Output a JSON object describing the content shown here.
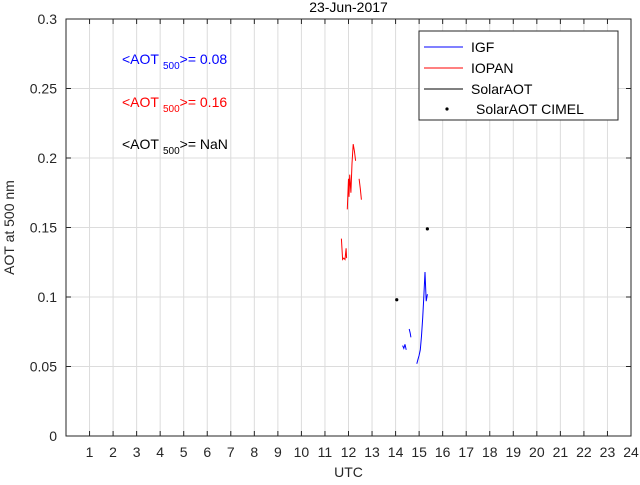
{
  "chart_data": {
    "type": "line",
    "title": "23-Jun-2017",
    "xlabel": "UTC",
    "ylabel": "AOT at 500 nm",
    "xlim": [
      0,
      24
    ],
    "ylim": [
      0,
      0.3
    ],
    "xticks": [
      1,
      2,
      3,
      4,
      5,
      6,
      7,
      8,
      9,
      10,
      11,
      12,
      13,
      14,
      15,
      16,
      17,
      18,
      19,
      20,
      21,
      22,
      23,
      24
    ],
    "yticks": [
      0,
      0.05,
      0.1,
      0.15,
      0.2,
      0.25,
      0.3
    ],
    "ytick_labels": [
      "0",
      "0.05",
      "0.1",
      "0.15",
      "0.2",
      "0.25",
      "0.3"
    ],
    "grid": true,
    "legend_position": "top-right",
    "series": [
      {
        "name": "IGF",
        "color": "#0000ff",
        "style": "line",
        "segments": [
          [
            [
              14.3,
              0.065
            ],
            [
              14.35,
              0.063
            ],
            [
              14.4,
              0.066
            ],
            [
              14.45,
              0.062
            ]
          ],
          [
            [
              14.58,
              0.077
            ],
            [
              14.62,
              0.074
            ],
            [
              14.65,
              0.071
            ]
          ],
          [
            [
              14.9,
              0.052
            ],
            [
              14.95,
              0.055
            ],
            [
              15.0,
              0.058
            ],
            [
              15.05,
              0.062
            ],
            [
              15.1,
              0.072
            ],
            [
              15.15,
              0.085
            ],
            [
              15.2,
              0.1
            ],
            [
              15.25,
              0.118
            ],
            [
              15.3,
              0.097
            ],
            [
              15.35,
              0.102
            ]
          ]
        ]
      },
      {
        "name": "IOPAN",
        "color": "#ff0000",
        "style": "line",
        "segments": [
          [
            [
              11.7,
              0.142
            ],
            [
              11.75,
              0.127
            ],
            [
              11.8,
              0.128
            ],
            [
              11.85,
              0.127
            ],
            [
              11.9,
              0.135
            ],
            [
              11.92,
              0.128
            ]
          ],
          [
            [
              11.95,
              0.163
            ],
            [
              12.0,
              0.185
            ],
            [
              12.02,
              0.172
            ],
            [
              12.05,
              0.188
            ],
            [
              12.1,
              0.175
            ],
            [
              12.15,
              0.196
            ],
            [
              12.2,
              0.21
            ],
            [
              12.25,
              0.205
            ],
            [
              12.3,
              0.198
            ]
          ],
          [
            [
              12.45,
              0.185
            ],
            [
              12.5,
              0.178
            ],
            [
              12.55,
              0.17
            ]
          ]
        ]
      },
      {
        "name": "SolarAOT",
        "color": "#000000",
        "style": "line",
        "segments": []
      },
      {
        "name": "SolarAOT CIMEL",
        "color": "#000000",
        "style": "marker",
        "points": [
          [
            14.05,
            0.098
          ],
          [
            15.35,
            0.149
          ]
        ]
      }
    ],
    "annotations": [
      {
        "prefix": "<AOT",
        "subscript": "500",
        "suffix": ">= 0.08",
        "color": "#0000ff"
      },
      {
        "prefix": "<AOT",
        "subscript": "500",
        "suffix": ">= 0.16",
        "color": "#ff0000"
      },
      {
        "prefix": "<AOT",
        "subscript": "500",
        "suffix": ">=  NaN",
        "color": "#000000"
      }
    ]
  }
}
